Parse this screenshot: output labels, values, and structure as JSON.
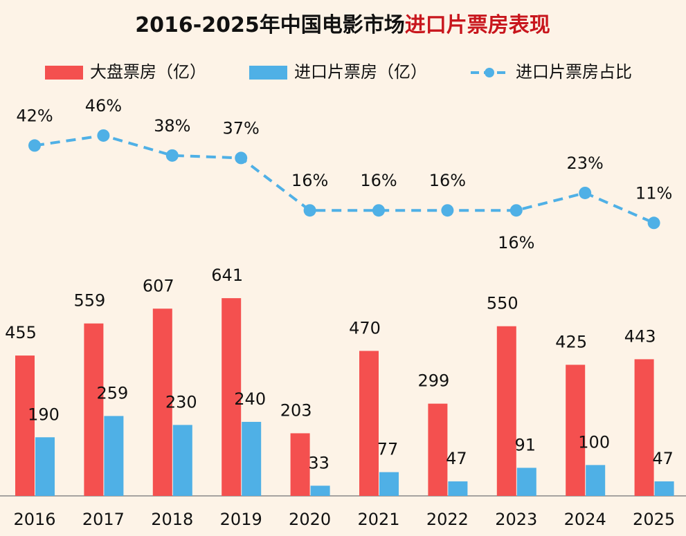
{
  "chart_data": {
    "type": "bar",
    "title": "2016-2025年中国电影市场",
    "title_highlight": "进口片票房表现",
    "categories": [
      "2016",
      "2017",
      "2018",
      "2019",
      "2020",
      "2021",
      "2022",
      "2023",
      "2024",
      "2025"
    ],
    "series": [
      {
        "name": "大盘票房（亿）",
        "type": "bar",
        "color": "#f4504f",
        "values": [
          455,
          559,
          607,
          641,
          203,
          470,
          299,
          550,
          425,
          443
        ]
      },
      {
        "name": "进口片票房（亿）",
        "type": "bar",
        "color": "#4fb0e6",
        "values": [
          190,
          259,
          230,
          240,
          33,
          77,
          47,
          91,
          100,
          47
        ]
      },
      {
        "name": "进口片票房占比",
        "type": "line",
        "axis": "y2",
        "color": "#4fb0e6",
        "values": [
          42,
          46,
          38,
          37,
          16,
          16,
          16,
          16,
          23,
          11
        ],
        "value_labels": [
          "42%",
          "46%",
          "38%",
          "37%",
          "16%",
          "16%",
          "16%",
          "16%",
          "23%",
          "11%"
        ]
      }
    ],
    "legend": "top"
  }
}
